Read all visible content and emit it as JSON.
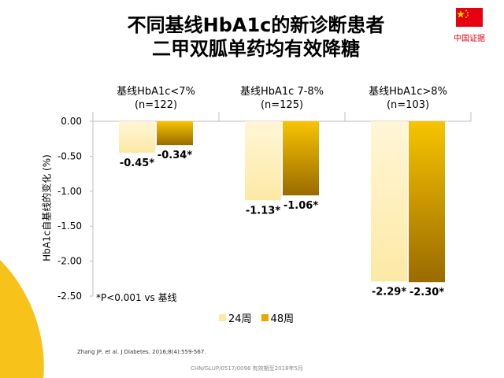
{
  "title_line1": "不同基线HbA1c的新诊断患者",
  "title_line2": "二甲双胍单药均有效降糖",
  "flag_label": "中国证据",
  "footnote": "*P<0.001 vs 基线",
  "citation": "Zhang JP, et al. J Diabetes. 2016;8(4):559-567.",
  "doc_code": "CHN/GLUP/0517/0096  有效期至2018年5月",
  "colors": {
    "week24": "#fde9a5",
    "week48": "#e9a800",
    "flag_red": "#e60012",
    "flag_star": "#ffde00"
  },
  "chart_data": {
    "type": "bar",
    "ylabel": "HbA1c自基线的变化 (%)",
    "ylim": [
      -2.5,
      0
    ],
    "yticks": [
      "0.00",
      "-0.50",
      "-1.00",
      "-1.50",
      "-2.00",
      "-2.50"
    ],
    "yticks_values": [
      0,
      -0.5,
      -1.0,
      -1.5,
      -2.0,
      -2.5
    ],
    "groups": [
      {
        "label": "基线HbA1c<7%",
        "n": "(n=122)"
      },
      {
        "label": "基线HbA1c  7-8%",
        "n": "(n=125)"
      },
      {
        "label": "基线HbA1c>8%",
        "n": "(n=103)"
      }
    ],
    "series": [
      {
        "name": "24周",
        "values": [
          -0.45,
          -1.13,
          -2.29
        ],
        "labels": [
          "-0.45*",
          "-1.13*",
          "-2.29*"
        ]
      },
      {
        "name": "48周",
        "values": [
          -0.34,
          -1.06,
          -2.3
        ],
        "labels": [
          "-0.34*",
          "-1.06*",
          "-2.30*"
        ]
      }
    ],
    "grid": false,
    "legend_position": "bottom"
  }
}
